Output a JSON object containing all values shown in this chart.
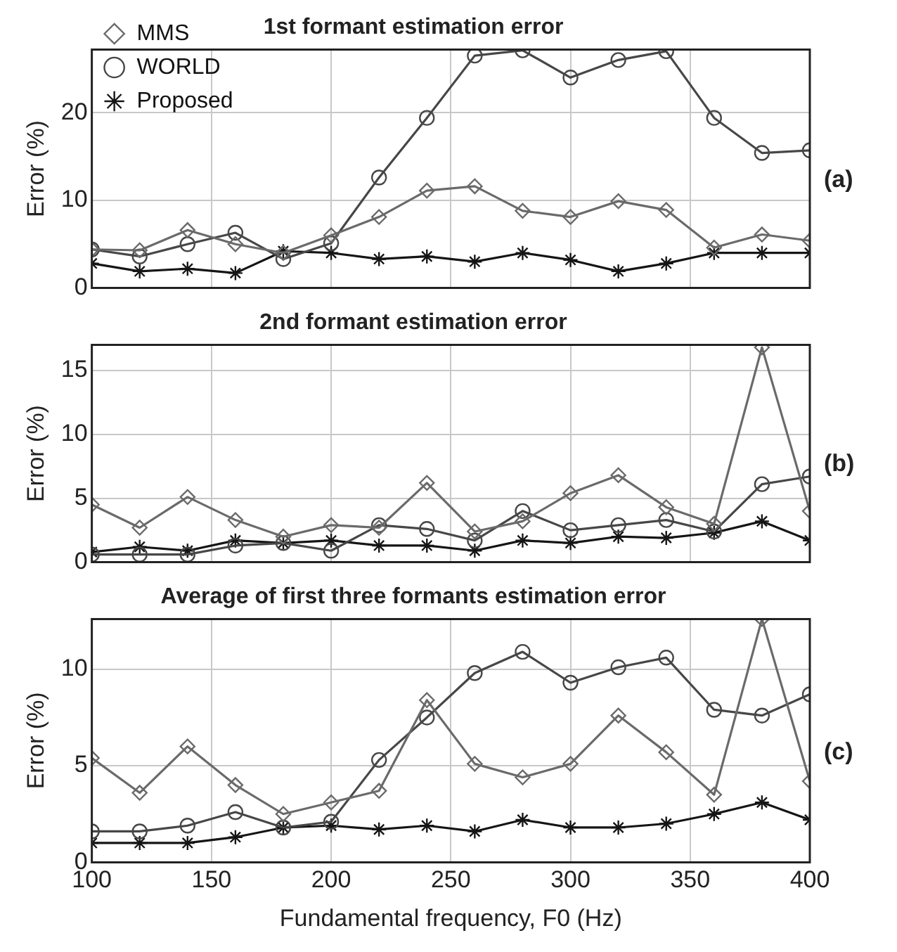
{
  "chart_data": [
    {
      "type": "line",
      "title": "1st formant estimation error",
      "ylabel": "Error (%)",
      "x": [
        100,
        120,
        140,
        160,
        180,
        200,
        220,
        240,
        260,
        280,
        300,
        320,
        340,
        360,
        380,
        400
      ],
      "xlim": [
        100,
        400
      ],
      "xticks": [
        100,
        150,
        200,
        250,
        300,
        350,
        400
      ],
      "ylim": [
        0,
        27.2
      ],
      "yticks": [
        0,
        10,
        20
      ],
      "tick_labels": "y",
      "grid": true,
      "legend": "top left",
      "annotations": [
        "(a)"
      ],
      "series": [
        {
          "name": "MMS",
          "color": "#6a6a6a",
          "marker": "diamond",
          "values": [
            4.4,
            4.3,
            6.6,
            5.0,
            4.0,
            6.0,
            8.1,
            11.1,
            11.6,
            8.8,
            8.1,
            9.9,
            8.9,
            4.6,
            6.1,
            5.4
          ]
        },
        {
          "name": "WORLD",
          "color": "#474747",
          "marker": "circle",
          "values": [
            4.4,
            3.6,
            5.0,
            6.3,
            3.3,
            5.1,
            12.6,
            19.4,
            26.5,
            27.1,
            24.0,
            26.0,
            27.0,
            19.4,
            15.4,
            15.7
          ]
        },
        {
          "name": "Proposed",
          "color": "#151515",
          "marker": "cross",
          "values": [
            2.8,
            1.9,
            2.2,
            1.7,
            4.2,
            4.0,
            3.3,
            3.6,
            3.0,
            4.0,
            3.2,
            1.9,
            2.8,
            4.0,
            4.0,
            4.0
          ]
        }
      ]
    },
    {
      "type": "line",
      "title": "2nd formant estimation error",
      "ylabel": "Error (%)",
      "x": [
        100,
        120,
        140,
        160,
        180,
        200,
        220,
        240,
        260,
        280,
        300,
        320,
        340,
        360,
        380,
        400
      ],
      "xlim": [
        100,
        400
      ],
      "xticks": [
        100,
        150,
        200,
        250,
        300,
        350,
        400
      ],
      "ylim": [
        0,
        17
      ],
      "yticks": [
        0,
        5,
        10,
        15
      ],
      "tick_labels": "y",
      "grid": true,
      "annotations": [
        "(b)"
      ],
      "series": [
        {
          "color": "#6a6a6a",
          "marker": "diamond",
          "values": [
            4.5,
            2.7,
            5.1,
            3.3,
            2.0,
            2.9,
            2.7,
            6.2,
            2.4,
            3.2,
            5.4,
            6.8,
            4.3,
            3.0,
            16.8,
            4.0
          ]
        },
        {
          "color": "#474747",
          "marker": "circle",
          "values": [
            0.6,
            0.6,
            0.6,
            1.3,
            1.5,
            0.9,
            2.9,
            2.6,
            1.7,
            4.0,
            2.5,
            2.9,
            3.3,
            2.4,
            6.1,
            6.7
          ]
        },
        {
          "color": "#151515",
          "marker": "cross",
          "values": [
            0.8,
            1.2,
            0.9,
            1.7,
            1.5,
            1.7,
            1.3,
            1.3,
            0.9,
            1.7,
            1.5,
            2.0,
            1.9,
            2.3,
            3.2,
            1.7
          ]
        }
      ]
    },
    {
      "type": "line",
      "title": "Average of first three formants estimation error",
      "xlabel": "Fundamental frequency, F0 (Hz)",
      "ylabel": "Error (%)",
      "x": [
        100,
        120,
        140,
        160,
        180,
        200,
        220,
        240,
        260,
        280,
        300,
        320,
        340,
        360,
        380,
        400
      ],
      "xlim": [
        100,
        400
      ],
      "xticks": [
        100,
        150,
        200,
        250,
        300,
        350,
        400
      ],
      "ylim": [
        0,
        12.6
      ],
      "yticks": [
        0,
        5,
        10
      ],
      "grid": true,
      "annotations": [
        "(c)"
      ],
      "series": [
        {
          "color": "#6a6a6a",
          "marker": "diamond",
          "values": [
            5.4,
            3.6,
            6.0,
            4.0,
            2.5,
            3.1,
            3.7,
            8.4,
            5.1,
            4.4,
            5.1,
            7.6,
            5.7,
            3.5,
            12.6,
            4.2
          ]
        },
        {
          "color": "#474747",
          "marker": "circle",
          "values": [
            1.6,
            1.6,
            1.9,
            2.6,
            1.8,
            2.1,
            5.3,
            7.5,
            9.8,
            10.9,
            9.3,
            10.1,
            10.6,
            7.9,
            7.6,
            8.7
          ]
        },
        {
          "color": "#151515",
          "marker": "cross",
          "values": [
            1.0,
            1.0,
            1.0,
            1.3,
            1.8,
            1.9,
            1.7,
            1.9,
            1.6,
            2.2,
            1.8,
            1.8,
            2.0,
            2.5,
            3.1,
            2.2
          ]
        }
      ]
    }
  ]
}
